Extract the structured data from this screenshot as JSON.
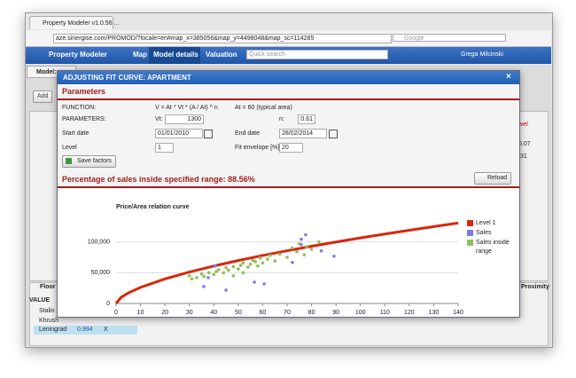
{
  "browser": {
    "tab_title": "Property Modeler v1.0.56 ...",
    "url": "aze.sinergise.com/PROMOD/?locale=en#map_x=385056&map_y=4498048&map_sc=114285",
    "search_placeholder": "Google"
  },
  "app": {
    "title": "Property Modeler",
    "nav": [
      "Map",
      "Model details",
      "Valuation"
    ],
    "search_placeholder": "Quick search",
    "user": "Grega Milcinski"
  },
  "background": {
    "tab": "Model:",
    "add_button": "Add",
    "table_header": "Floor n",
    "column": "VALUE",
    "rows": [
      "Stalin",
      "Khrush"
    ],
    "selected_row": [
      "Leningrad",
      "0.994",
      "X"
    ],
    "right_header": "evel",
    "right_values": [
      "0.07",
      "31"
    ],
    "right_tab": "Proximity"
  },
  "modal": {
    "title": "ADJUSTING FIT CURVE: APARTMENT",
    "close": "×",
    "section": "Parameters",
    "form": {
      "function_label": "FUNCTION:",
      "function": "V = At * Vt * (A / At) ^ n",
      "typical_area": "At = 60 (typical area)",
      "parameters_label": "PARAMETERS:",
      "vt_label": "Vt:",
      "vt": "1300",
      "n_label": "n:",
      "n": "0.61",
      "start_label": "Start date",
      "start": "01/01/2010",
      "end_label": "End date",
      "end": "28/02/2014",
      "level_label": "Level",
      "level": "1",
      "envelope_label": "Fit envelope [%]",
      "envelope": "20"
    },
    "save_button": "Save factors",
    "result": "Percentage of sales inside specified range: 88.56%",
    "reload_button": "Reload"
  },
  "chart_data": {
    "type": "scatter",
    "title": "Price/Area relation curve",
    "xlim": [
      0,
      140
    ],
    "xticks": [
      0,
      10,
      20,
      30,
      40,
      50,
      60,
      70,
      80,
      90,
      100,
      110,
      120,
      130,
      140
    ],
    "ylim": [
      0,
      150000
    ],
    "yticks": [
      0,
      {
        "value": 50000,
        "label": "50,000"
      },
      {
        "value": 100000,
        "label": "100,000"
      }
    ],
    "grid": true,
    "series": [
      {
        "name": "Level 1",
        "color": "#d9260c",
        "mark": "line",
        "x": [
          0,
          2,
          5,
          10,
          20,
          30,
          40,
          50,
          60,
          70,
          80,
          90,
          100,
          110,
          120,
          130,
          140
        ],
        "values": [
          0,
          9800,
          17100,
          26130,
          39900,
          51100,
          60900,
          69800,
          78000,
          85700,
          93000,
          99900,
          106500,
          112900,
          119000,
          125000,
          130800
        ]
      },
      {
        "name": "Sales",
        "color": "#7b7bef",
        "mark": "point",
        "x": [
          77.6,
          75.8,
          84,
          89.2,
          72.2,
          37.7,
          35.9,
          56.6,
          60.6,
          40.6,
          75.8,
          45
        ],
        "values": [
          111600,
          104300,
          85500,
          76800,
          66700,
          42000,
          27500,
          34800,
          31900,
          60900,
          95700,
          21700
        ]
      },
      {
        "name": "Sales inside range",
        "color": "#8fbf5a",
        "mark": "point",
        "x": [
          30,
          31,
          33,
          35,
          36,
          38,
          40,
          41,
          42,
          44,
          45,
          46,
          48,
          50,
          51,
          52,
          54,
          55,
          56,
          57,
          58,
          59,
          60,
          62,
          63,
          65,
          67,
          70,
          72,
          74,
          75,
          77,
          78,
          80,
          83,
          52,
          48
        ],
        "values": [
          45000,
          40000,
          42000,
          48000,
          44000,
          50000,
          47000,
          52000,
          55000,
          50000,
          58000,
          54000,
          60000,
          56000,
          62000,
          66000,
          59000,
          64000,
          70000,
          68000,
          61000,
          74000,
          66000,
          72000,
          78000,
          69000,
          80000,
          75000,
          90000,
          84000,
          97000,
          79000,
          92000,
          88000,
          100000,
          50000,
          45000
        ]
      }
    ]
  }
}
